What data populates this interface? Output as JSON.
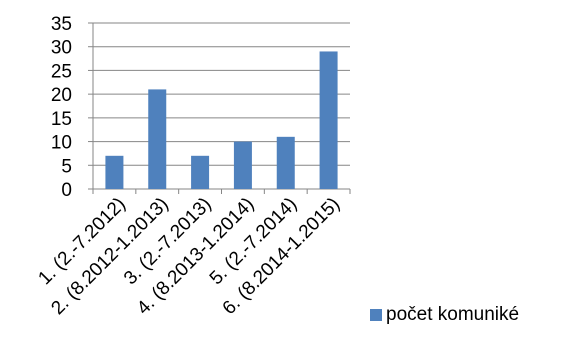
{
  "chart_data": {
    "type": "bar",
    "categories": [
      "1. (2.-7.2012)",
      "2. (8.2012-1.2013)",
      "3. (2.-7.2013)",
      "4. (8.2013-1.2014)",
      "5. (2.-7.2014)",
      "6. (8.2014-1.2015)"
    ],
    "series": [
      {
        "name": "počet komuniké",
        "values": [
          7,
          21,
          7,
          10,
          11,
          29
        ]
      }
    ],
    "ylim": [
      0,
      35
    ],
    "yticks": [
      0,
      5,
      10,
      15,
      20,
      25,
      30,
      35
    ],
    "grid": true,
    "legend": "bottom-right",
    "colors": {
      "bar": "#4f81bd",
      "grid": "#868686",
      "axis": "#868686"
    }
  }
}
